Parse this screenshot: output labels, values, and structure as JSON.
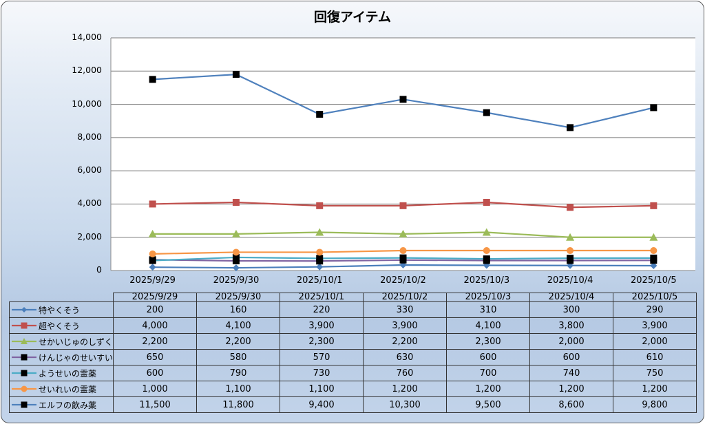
{
  "chart_data": {
    "type": "line",
    "title": "回復アイテム",
    "xlabel": "",
    "ylabel": "",
    "ylim": [
      0,
      14000
    ],
    "yticks": [
      "14,000",
      "12,000",
      "10,000",
      "8,000",
      "6,000",
      "4,000",
      "2,000",
      "0"
    ],
    "ytick_values": [
      14000,
      12000,
      10000,
      8000,
      6000,
      4000,
      2000,
      0
    ],
    "categories": [
      "2025/9/29",
      "2025/9/30",
      "2025/10/1",
      "2025/10/2",
      "2025/10/3",
      "2025/10/4",
      "2025/10/5"
    ],
    "grid": true,
    "legend": "data-table",
    "series": [
      {
        "name": "特やくそう",
        "color": "#4a7ebb",
        "marker": "diamond",
        "marker_color": "#4a7ebb",
        "values": [
          200,
          160,
          220,
          330,
          310,
          300,
          290
        ],
        "labels": [
          "200",
          "160",
          "220",
          "330",
          "310",
          "300",
          "290"
        ]
      },
      {
        "name": "超やくそう",
        "color": "#c0504d",
        "marker": "square",
        "marker_color": "#c0504d",
        "values": [
          4000,
          4100,
          3900,
          3900,
          4100,
          3800,
          3900
        ],
        "labels": [
          "4,000",
          "4,100",
          "3,900",
          "3,900",
          "4,100",
          "3,800",
          "3,900"
        ]
      },
      {
        "name": "せかいじゅのしずく",
        "color": "#9bbb59",
        "marker": "triangle",
        "marker_color": "#9bbb59",
        "values": [
          2200,
          2200,
          2300,
          2200,
          2300,
          2000,
          2000
        ],
        "labels": [
          "2,200",
          "2,200",
          "2,300",
          "2,200",
          "2,300",
          "2,000",
          "2,000"
        ]
      },
      {
        "name": "けんじゃのせいすい",
        "color": "#8064a2",
        "marker": "square",
        "marker_color": "#000000",
        "values": [
          650,
          580,
          570,
          630,
          600,
          600,
          610
        ],
        "labels": [
          "650",
          "580",
          "570",
          "630",
          "600",
          "600",
          "610"
        ]
      },
      {
        "name": "ようせいの霊薬",
        "color": "#4bacc6",
        "marker": "square",
        "marker_color": "#000000",
        "values": [
          600,
          790,
          730,
          760,
          700,
          740,
          750
        ],
        "labels": [
          "600",
          "790",
          "730",
          "760",
          "700",
          "740",
          "750"
        ]
      },
      {
        "name": "せいれいの霊薬",
        "color": "#f79646",
        "marker": "circle",
        "marker_color": "#f79646",
        "values": [
          1000,
          1100,
          1100,
          1200,
          1200,
          1200,
          1200
        ],
        "labels": [
          "1,000",
          "1,100",
          "1,100",
          "1,200",
          "1,200",
          "1,200",
          "1,200"
        ]
      },
      {
        "name": "エルフの飲み薬",
        "color": "#4f81bd",
        "marker": "square",
        "marker_color": "#000000",
        "values": [
          11500,
          11800,
          9400,
          10300,
          9500,
          8600,
          9800
        ],
        "labels": [
          "11,500",
          "11,800",
          "9,400",
          "10,300",
          "9,500",
          "8,600",
          "9,800"
        ]
      }
    ]
  }
}
